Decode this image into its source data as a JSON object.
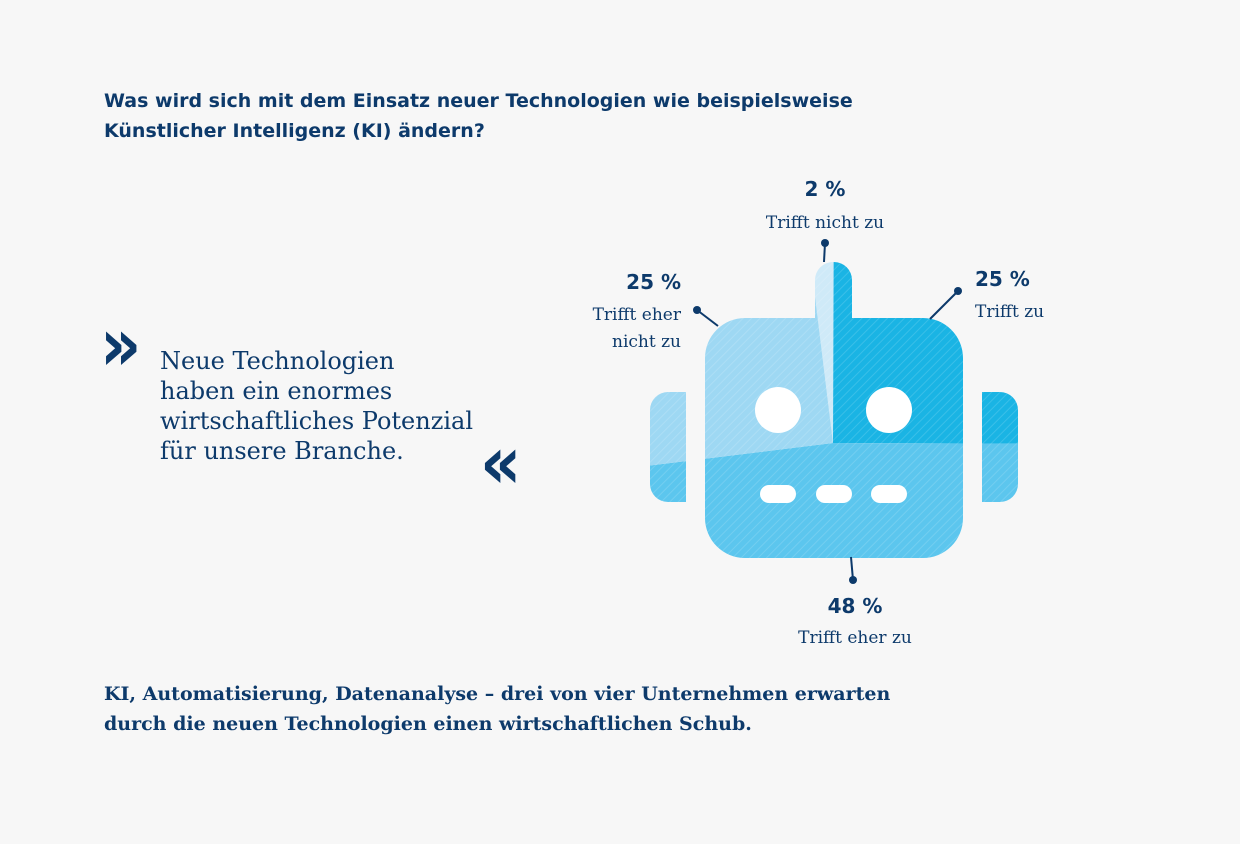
{
  "question": {
    "line1": "Was wird sich mit dem Einsatz neuer Technologien wie beispielsweise",
    "line2": "Künstlicher Intelligenz (KI) ändern?"
  },
  "quote": {
    "open_mark": "»",
    "close_mark": "«",
    "lines": [
      "Neue Technologien",
      "haben ein enormes",
      "wirtschaftliches Potenzial",
      "für unsere Branche."
    ]
  },
  "conclusion": {
    "line1": "KI, Automatisierung, Datenanalyse – drei von vier Unternehmen erwarten",
    "line2": "durch die neuen Technologien einen wirtschaftlichen Schub."
  },
  "colors": {
    "text": "#0d3a6b",
    "trifft_zu": "#1ab4e4",
    "trifft_eher_zu": "#5cc6ee",
    "trifft_eher_nicht_zu": "#9ed8f3",
    "trifft_nicht_zu": "#cfeaf8"
  },
  "chart_data": {
    "type": "pie",
    "categories": [
      "Trifft nicht zu",
      "Trifft zu",
      "Trifft eher zu",
      "Trifft eher nicht zu"
    ],
    "values": [
      2,
      25,
      48,
      25
    ],
    "value_labels": [
      "2",
      "25",
      "48",
      "25"
    ],
    "unit": "%",
    "label_lines": [
      [
        "Trifft nicht zu"
      ],
      [
        "Trifft zu"
      ],
      [
        "Trifft eher zu"
      ],
      [
        "Trifft eher",
        "nicht zu"
      ]
    ]
  }
}
